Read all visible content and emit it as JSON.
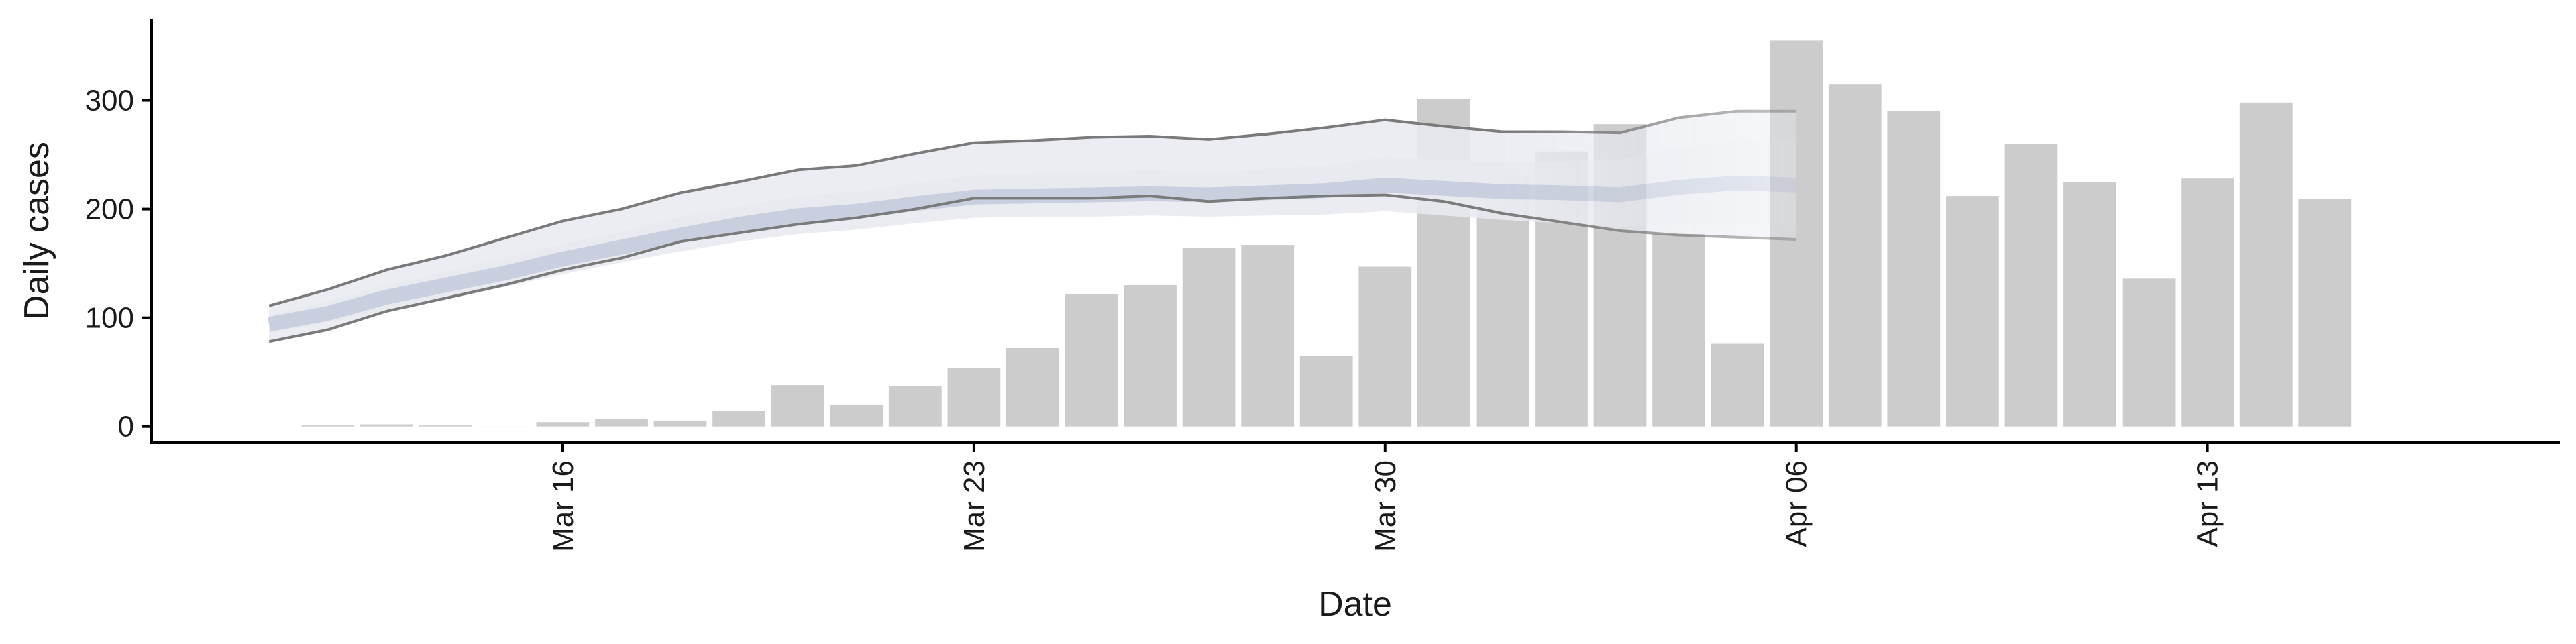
{
  "chart_data": {
    "type": "bar",
    "xlabel": "Date",
    "ylabel": "Daily cases",
    "ylim": [
      -15,
      375
    ],
    "y_ticks": [
      0,
      100,
      200,
      300
    ],
    "x_ticks": [
      {
        "date": "2020-03-16",
        "label": "Mar 16"
      },
      {
        "date": "2020-03-23",
        "label": "Mar 23"
      },
      {
        "date": "2020-03-30",
        "label": "Mar 30"
      },
      {
        "date": "2020-04-06",
        "label": "Apr 06"
      },
      {
        "date": "2020-04-13",
        "label": "Apr 13"
      }
    ],
    "x_range": [
      "2020-03-09",
      "2020-04-19"
    ],
    "bars": {
      "color": "#cccccc",
      "dates": [
        "2020-03-12",
        "2020-03-13",
        "2020-03-14",
        "2020-03-15",
        "2020-03-16",
        "2020-03-17",
        "2020-03-18",
        "2020-03-19",
        "2020-03-20",
        "2020-03-21",
        "2020-03-22",
        "2020-03-23",
        "2020-03-24",
        "2020-03-25",
        "2020-03-26",
        "2020-03-27",
        "2020-03-28",
        "2020-03-29",
        "2020-03-30",
        "2020-03-31",
        "2020-04-01",
        "2020-04-02",
        "2020-04-03",
        "2020-04-04",
        "2020-04-05",
        "2020-04-06",
        "2020-04-07",
        "2020-04-08",
        "2020-04-09",
        "2020-04-10",
        "2020-04-11",
        "2020-04-12",
        "2020-04-13",
        "2020-04-14",
        "2020-04-15"
      ],
      "values": [
        1,
        2,
        1,
        0,
        4,
        7,
        5,
        14,
        38,
        20,
        37,
        54,
        72,
        122,
        130,
        164,
        167,
        65,
        147,
        301,
        230,
        253,
        278,
        177,
        76,
        355,
        315,
        290,
        212,
        260,
        225,
        136,
        228,
        298,
        209
      ]
    },
    "estimate": {
      "dates": [
        "2020-03-11",
        "2020-03-12",
        "2020-03-13",
        "2020-03-14",
        "2020-03-15",
        "2020-03-16",
        "2020-03-17",
        "2020-03-18",
        "2020-03-19",
        "2020-03-20",
        "2020-03-21",
        "2020-03-22",
        "2020-03-23",
        "2020-03-24",
        "2020-03-25",
        "2020-03-26",
        "2020-03-27",
        "2020-03-28",
        "2020-03-29",
        "2020-03-30",
        "2020-03-31",
        "2020-04-01",
        "2020-04-02",
        "2020-04-03",
        "2020-04-04",
        "2020-04-05",
        "2020-04-06"
      ],
      "upper90": [
        111,
        126,
        144,
        157,
        173,
        189,
        200,
        215,
        225,
        236,
        240,
        251,
        261,
        263,
        266,
        267,
        264,
        269,
        275,
        282,
        276,
        271,
        271,
        270,
        284,
        290,
        290
      ],
      "upper50": [
        103,
        115,
        130,
        142,
        155,
        168,
        179,
        193,
        202,
        212,
        216,
        224,
        231,
        233,
        234,
        236,
        233,
        237,
        240,
        248,
        245,
        243,
        244,
        246,
        257,
        263,
        262
      ],
      "median": [
        94,
        104,
        119,
        130,
        141,
        154,
        165,
        176,
        186,
        194,
        198,
        205,
        211,
        212,
        213,
        214,
        213,
        215,
        217,
        222,
        219,
        216,
        215,
        213,
        220,
        224,
        222
      ],
      "lower50": [
        86,
        95,
        108,
        118,
        128,
        140,
        151,
        161,
        170,
        177,
        181,
        187,
        192,
        193,
        193,
        194,
        193,
        194,
        195,
        198,
        194,
        190,
        187,
        184,
        186,
        187,
        184
      ],
      "lower90": [
        78,
        89,
        106,
        118,
        130,
        144,
        155,
        170,
        178,
        186,
        192,
        200,
        210,
        210,
        210,
        212,
        207,
        210,
        212,
        213,
        207,
        196,
        188,
        180,
        176,
        174,
        172
      ],
      "colors": {
        "band_outer": "#e8eaf1",
        "band_inner": "#c4cadc",
        "bound_line": "#7a7a7a"
      }
    }
  }
}
